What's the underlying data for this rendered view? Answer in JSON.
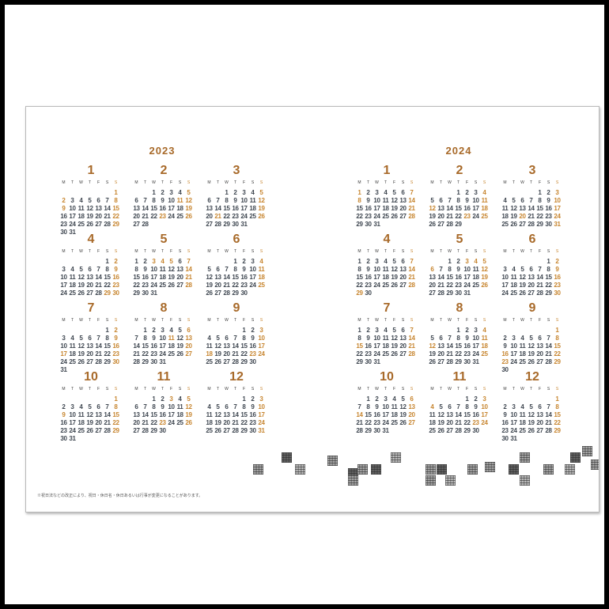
{
  "years": [
    {
      "label": "2023",
      "months": [
        {
          "label": "1",
          "startCol": 6,
          "days": 31,
          "holidays": [
            1,
            2,
            9
          ]
        },
        {
          "label": "2",
          "startCol": 2,
          "days": 28,
          "holidays": [
            11,
            23
          ]
        },
        {
          "label": "3",
          "startCol": 2,
          "days": 31,
          "holidays": [
            21
          ]
        },
        {
          "label": "4",
          "startCol": 5,
          "days": 30,
          "holidays": [
            29
          ]
        },
        {
          "label": "5",
          "startCol": 0,
          "days": 31,
          "holidays": [
            3,
            4,
            5
          ]
        },
        {
          "label": "6",
          "startCol": 3,
          "days": 30,
          "holidays": []
        },
        {
          "label": "7",
          "startCol": 5,
          "days": 31,
          "holidays": [
            17
          ]
        },
        {
          "label": "8",
          "startCol": 1,
          "days": 31,
          "holidays": [
            11
          ]
        },
        {
          "label": "9",
          "startCol": 4,
          "days": 30,
          "holidays": [
            18,
            23
          ]
        },
        {
          "label": "10",
          "startCol": 6,
          "days": 31,
          "holidays": [
            9
          ]
        },
        {
          "label": "11",
          "startCol": 2,
          "days": 30,
          "holidays": [
            3,
            23
          ]
        },
        {
          "label": "12",
          "startCol": 4,
          "days": 31,
          "holidays": []
        }
      ]
    },
    {
      "label": "2024",
      "months": [
        {
          "label": "1",
          "startCol": 0,
          "days": 31,
          "holidays": [
            1,
            8
          ]
        },
        {
          "label": "2",
          "startCol": 3,
          "days": 29,
          "holidays": [
            11,
            12,
            23
          ]
        },
        {
          "label": "3",
          "startCol": 4,
          "days": 31,
          "holidays": [
            20
          ]
        },
        {
          "label": "4",
          "startCol": 0,
          "days": 30,
          "holidays": [
            29
          ]
        },
        {
          "label": "5",
          "startCol": 2,
          "days": 31,
          "holidays": [
            3,
            4,
            5,
            6
          ]
        },
        {
          "label": "6",
          "startCol": 5,
          "days": 30,
          "holidays": []
        },
        {
          "label": "7",
          "startCol": 0,
          "days": 31,
          "holidays": [
            15
          ]
        },
        {
          "label": "8",
          "startCol": 3,
          "days": 31,
          "holidays": [
            11,
            12
          ]
        },
        {
          "label": "9",
          "startCol": 6,
          "days": 30,
          "holidays": [
            16,
            22,
            23
          ]
        },
        {
          "label": "10",
          "startCol": 1,
          "days": 31,
          "holidays": [
            14
          ]
        },
        {
          "label": "11",
          "startCol": 4,
          "days": 30,
          "holidays": [
            3,
            4,
            23
          ]
        },
        {
          "label": "12",
          "startCol": 6,
          "days": 31,
          "holidays": []
        }
      ]
    }
  ],
  "weekday_labels": [
    "M",
    "T",
    "W",
    "T",
    "F",
    "S",
    "S"
  ],
  "footnote": "※祝日法などの改正により、祝日・休日名・休日あるいは行事が変更になることがあります。",
  "colors": {
    "accent": "#a86a2a",
    "holiday": "#c7852f",
    "weekday_date": "#3e4650",
    "saturday_date": "#3e4650",
    "sunday_date": "#c7852f",
    "saturday_label": "#3a3a3a",
    "sunday_label": "#c7852f"
  },
  "decoration": {
    "pattern_name": "qr-mosaic-pattern"
  }
}
